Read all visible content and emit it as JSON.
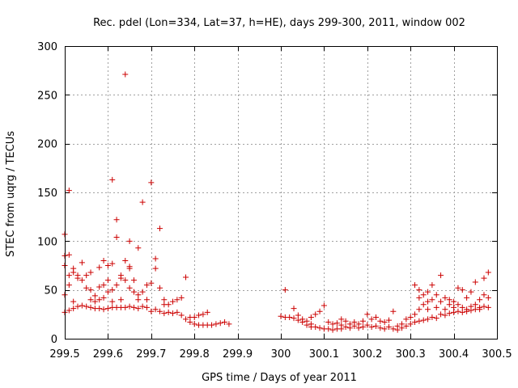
{
  "chart_data": {
    "type": "scatter",
    "title": "Rec. pdel (Lon=334, Lat=37, h=HE), days 299-300, 2011, window 002",
    "xlabel": "GPS time / Days of year 2011",
    "ylabel": "STEC from uqrg / TECUs",
    "xlim": [
      299.5,
      300.5
    ],
    "ylim": [
      0,
      300
    ],
    "x_ticks": [
      299.5,
      299.6,
      299.7,
      299.8,
      299.9,
      300,
      300.1,
      300.2,
      300.3,
      300.4,
      300.5
    ],
    "x_tick_labels": [
      "299.5",
      "299.6",
      "299.7",
      "299.8",
      "299.9",
      "300",
      "300.1",
      "300.2",
      "300.3",
      "300.4",
      "300.5"
    ],
    "y_ticks": [
      0,
      50,
      100,
      150,
      200,
      250,
      300
    ],
    "y_tick_labels": [
      "0",
      "50",
      "100",
      "150",
      "200",
      "250",
      "300"
    ],
    "grid": true,
    "marker": "plus",
    "series": [
      {
        "name": "STEC",
        "color": "#cc0000",
        "points": [
          [
            299.5,
            107
          ],
          [
            299.5,
            85
          ],
          [
            299.5,
            75
          ],
          [
            299.5,
            45
          ],
          [
            299.5,
            27
          ],
          [
            299.51,
            152
          ],
          [
            299.51,
            86
          ],
          [
            299.51,
            65
          ],
          [
            299.51,
            55
          ],
          [
            299.51,
            29
          ],
          [
            299.52,
            72
          ],
          [
            299.52,
            68
          ],
          [
            299.52,
            38
          ],
          [
            299.52,
            31
          ],
          [
            299.53,
            65
          ],
          [
            299.53,
            62
          ],
          [
            299.53,
            33
          ],
          [
            299.54,
            78
          ],
          [
            299.54,
            60
          ],
          [
            299.54,
            34
          ],
          [
            299.55,
            65
          ],
          [
            299.55,
            52
          ],
          [
            299.55,
            33
          ],
          [
            299.56,
            68
          ],
          [
            299.56,
            50
          ],
          [
            299.56,
            40
          ],
          [
            299.56,
            32
          ],
          [
            299.57,
            44
          ],
          [
            299.57,
            38
          ],
          [
            299.57,
            31
          ],
          [
            299.58,
            73
          ],
          [
            299.58,
            53
          ],
          [
            299.58,
            40
          ],
          [
            299.58,
            31
          ],
          [
            299.59,
            80
          ],
          [
            299.59,
            55
          ],
          [
            299.59,
            42
          ],
          [
            299.59,
            30
          ],
          [
            299.6,
            75
          ],
          [
            299.6,
            60
          ],
          [
            299.6,
            48
          ],
          [
            299.6,
            31
          ],
          [
            299.61,
            163
          ],
          [
            299.61,
            77
          ],
          [
            299.61,
            50
          ],
          [
            299.61,
            38
          ],
          [
            299.61,
            32
          ],
          [
            299.62,
            122
          ],
          [
            299.62,
            104
          ],
          [
            299.62,
            55
          ],
          [
            299.62,
            32
          ],
          [
            299.63,
            65
          ],
          [
            299.63,
            62
          ],
          [
            299.63,
            40
          ],
          [
            299.63,
            32
          ],
          [
            299.64,
            271
          ],
          [
            299.64,
            80
          ],
          [
            299.64,
            60
          ],
          [
            299.64,
            32
          ],
          [
            299.65,
            100
          ],
          [
            299.65,
            74
          ],
          [
            299.65,
            72
          ],
          [
            299.65,
            52
          ],
          [
            299.65,
            33
          ],
          [
            299.66,
            60
          ],
          [
            299.66,
            48
          ],
          [
            299.66,
            32
          ],
          [
            299.67,
            93
          ],
          [
            299.67,
            45
          ],
          [
            299.67,
            40
          ],
          [
            299.67,
            31
          ],
          [
            299.68,
            140
          ],
          [
            299.68,
            48
          ],
          [
            299.68,
            33
          ],
          [
            299.69,
            55
          ],
          [
            299.69,
            40
          ],
          [
            299.69,
            32
          ],
          [
            299.7,
            160
          ],
          [
            299.7,
            57
          ],
          [
            299.7,
            28
          ],
          [
            299.71,
            82
          ],
          [
            299.71,
            72
          ],
          [
            299.71,
            30
          ],
          [
            299.72,
            113
          ],
          [
            299.72,
            52
          ],
          [
            299.72,
            28
          ],
          [
            299.73,
            40
          ],
          [
            299.73,
            35
          ],
          [
            299.73,
            26
          ],
          [
            299.74,
            35
          ],
          [
            299.74,
            27
          ],
          [
            299.75,
            38
          ],
          [
            299.75,
            26
          ],
          [
            299.76,
            40
          ],
          [
            299.76,
            27
          ],
          [
            299.77,
            42
          ],
          [
            299.77,
            24
          ],
          [
            299.78,
            63
          ],
          [
            299.78,
            20
          ],
          [
            299.79,
            22
          ],
          [
            299.79,
            17
          ],
          [
            299.8,
            22
          ],
          [
            299.8,
            15
          ],
          [
            299.81,
            24
          ],
          [
            299.81,
            14
          ],
          [
            299.82,
            25
          ],
          [
            299.82,
            14
          ],
          [
            299.83,
            27
          ],
          [
            299.83,
            14
          ],
          [
            299.84,
            14
          ],
          [
            299.85,
            15
          ],
          [
            299.86,
            16
          ],
          [
            299.87,
            17
          ],
          [
            299.88,
            15
          ],
          [
            300.0,
            23
          ],
          [
            300.01,
            50
          ],
          [
            300.01,
            22
          ],
          [
            300.02,
            22
          ],
          [
            300.03,
            31
          ],
          [
            300.03,
            21
          ],
          [
            300.04,
            24
          ],
          [
            300.04,
            19
          ],
          [
            300.05,
            20
          ],
          [
            300.05,
            17
          ],
          [
            300.06,
            18
          ],
          [
            300.06,
            14
          ],
          [
            300.07,
            22
          ],
          [
            300.07,
            15
          ],
          [
            300.07,
            12
          ],
          [
            300.08,
            25
          ],
          [
            300.08,
            12
          ],
          [
            300.09,
            28
          ],
          [
            300.09,
            11
          ],
          [
            300.1,
            34
          ],
          [
            300.1,
            10
          ],
          [
            300.11,
            17
          ],
          [
            300.11,
            10
          ],
          [
            300.12,
            15
          ],
          [
            300.12,
            9
          ],
          [
            300.13,
            16
          ],
          [
            300.13,
            10
          ],
          [
            300.14,
            20
          ],
          [
            300.14,
            14
          ],
          [
            300.14,
            10
          ],
          [
            300.15,
            18
          ],
          [
            300.15,
            12
          ],
          [
            300.16,
            15
          ],
          [
            300.16,
            11
          ],
          [
            300.17,
            17
          ],
          [
            300.17,
            13
          ],
          [
            300.18,
            15
          ],
          [
            300.18,
            11
          ],
          [
            300.19,
            18
          ],
          [
            300.19,
            12
          ],
          [
            300.2,
            25
          ],
          [
            300.2,
            14
          ],
          [
            300.21,
            20
          ],
          [
            300.21,
            12
          ],
          [
            300.22,
            22
          ],
          [
            300.22,
            13
          ],
          [
            300.23,
            18
          ],
          [
            300.23,
            11
          ],
          [
            300.24,
            17
          ],
          [
            300.24,
            10
          ],
          [
            300.25,
            19
          ],
          [
            300.25,
            12
          ],
          [
            300.26,
            28
          ],
          [
            300.26,
            10
          ],
          [
            300.27,
            13
          ],
          [
            300.27,
            9
          ],
          [
            300.28,
            15
          ],
          [
            300.28,
            11
          ],
          [
            300.29,
            20
          ],
          [
            300.29,
            13
          ],
          [
            300.3,
            22
          ],
          [
            300.3,
            15
          ],
          [
            300.31,
            55
          ],
          [
            300.31,
            25
          ],
          [
            300.31,
            17
          ],
          [
            300.32,
            50
          ],
          [
            300.32,
            42
          ],
          [
            300.32,
            30
          ],
          [
            300.32,
            18
          ],
          [
            300.33,
            45
          ],
          [
            300.33,
            35
          ],
          [
            300.33,
            19
          ],
          [
            300.34,
            48
          ],
          [
            300.34,
            38
          ],
          [
            300.34,
            30
          ],
          [
            300.34,
            20
          ],
          [
            300.35,
            55
          ],
          [
            300.35,
            40
          ],
          [
            300.35,
            22
          ],
          [
            300.36,
            45
          ],
          [
            300.36,
            32
          ],
          [
            300.36,
            21
          ],
          [
            300.37,
            65
          ],
          [
            300.37,
            38
          ],
          [
            300.37,
            25
          ],
          [
            300.38,
            42
          ],
          [
            300.38,
            30
          ],
          [
            300.38,
            24
          ],
          [
            300.39,
            40
          ],
          [
            300.39,
            35
          ],
          [
            300.39,
            26
          ],
          [
            300.4,
            38
          ],
          [
            300.4,
            32
          ],
          [
            300.4,
            27
          ],
          [
            300.41,
            52
          ],
          [
            300.41,
            35
          ],
          [
            300.41,
            28
          ],
          [
            300.42,
            50
          ],
          [
            300.42,
            32
          ],
          [
            300.42,
            27
          ],
          [
            300.43,
            42
          ],
          [
            300.43,
            30
          ],
          [
            300.43,
            28
          ],
          [
            300.44,
            48
          ],
          [
            300.44,
            33
          ],
          [
            300.44,
            29
          ],
          [
            300.45,
            58
          ],
          [
            300.45,
            35
          ],
          [
            300.45,
            30
          ],
          [
            300.46,
            40
          ],
          [
            300.46,
            32
          ],
          [
            300.46,
            30
          ],
          [
            300.47,
            62
          ],
          [
            300.47,
            45
          ],
          [
            300.47,
            33
          ],
          [
            300.48,
            68
          ],
          [
            300.48,
            42
          ],
          [
            300.48,
            32
          ]
        ]
      }
    ]
  }
}
